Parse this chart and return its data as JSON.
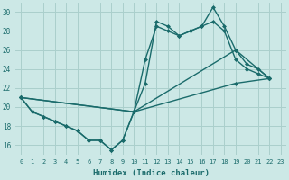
{
  "xlabel": "Humidex (Indice chaleur)",
  "background_color": "#cce8e6",
  "grid_color": "#aacfcc",
  "line_color": "#1a6b6b",
  "marker": "D",
  "markersize": 2.0,
  "linewidth": 1.0,
  "xlim": [
    -0.5,
    23.5
  ],
  "ylim": [
    15.0,
    31.0
  ],
  "yticks": [
    16,
    18,
    20,
    22,
    24,
    26,
    28,
    30
  ],
  "xticks": [
    0,
    1,
    2,
    3,
    4,
    5,
    6,
    7,
    8,
    9,
    10,
    11,
    12,
    13,
    14,
    15,
    16,
    17,
    18,
    19,
    20,
    21,
    22,
    23
  ],
  "line1_x": [
    0,
    1,
    2,
    3,
    4,
    5,
    6,
    7,
    8,
    9,
    10,
    11,
    12,
    13,
    14,
    15,
    16,
    17,
    18,
    19,
    20,
    21,
    22
  ],
  "line1_y": [
    21.0,
    19.5,
    19.0,
    18.5,
    18.0,
    17.5,
    16.5,
    16.5,
    15.5,
    16.5,
    19.5,
    22.5,
    29.0,
    28.5,
    27.5,
    28.0,
    28.5,
    30.5,
    28.5,
    26.0,
    24.5,
    24.0,
    23.0
  ],
  "line2_x": [
    0,
    1,
    2,
    3,
    4,
    5,
    6,
    7,
    8,
    9,
    10,
    11,
    12,
    13,
    14,
    15,
    16,
    17,
    18,
    19,
    20,
    21,
    22
  ],
  "line2_y": [
    21.0,
    19.5,
    19.0,
    18.5,
    18.0,
    17.5,
    16.5,
    16.5,
    15.5,
    16.5,
    19.5,
    25.0,
    28.5,
    28.0,
    27.5,
    28.0,
    28.5,
    29.0,
    28.0,
    25.0,
    24.0,
    23.5,
    23.0
  ],
  "line3_x": [
    0,
    10,
    19,
    22
  ],
  "line3_y": [
    21.0,
    19.5,
    26.0,
    23.0
  ],
  "line4_x": [
    0,
    10,
    19,
    22
  ],
  "line4_y": [
    21.0,
    19.5,
    22.5,
    23.0
  ]
}
